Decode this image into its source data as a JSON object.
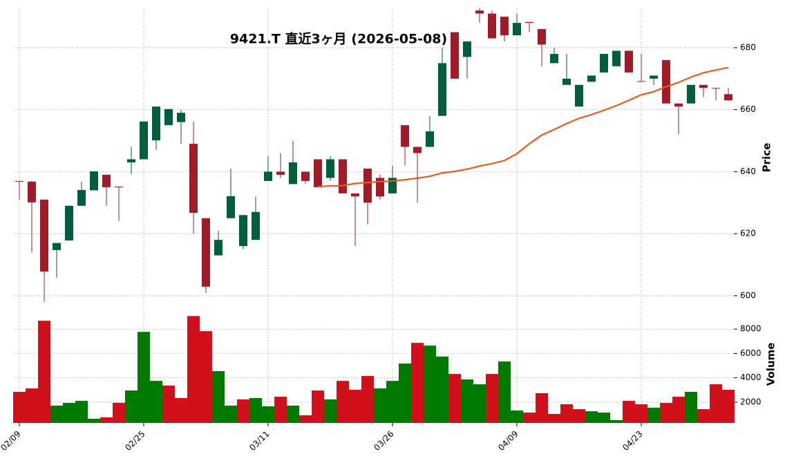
{
  "chart_data": {
    "type": "candlestick",
    "title": "9421.T  直近3ヶ月  (2026-05-08)",
    "categories": [
      "02/09",
      null,
      null,
      null,
      null,
      null,
      null,
      null,
      null,
      null,
      "02/25",
      null,
      null,
      null,
      null,
      null,
      null,
      null,
      null,
      null,
      "03/11",
      null,
      null,
      null,
      null,
      null,
      null,
      null,
      null,
      null,
      "03/26",
      null,
      null,
      null,
      null,
      null,
      null,
      null,
      null,
      null,
      "04/09",
      null,
      null,
      null,
      null,
      null,
      null,
      null,
      null,
      null,
      "04/23",
      null,
      null,
      null,
      null,
      null,
      null,
      null
    ],
    "open": [
      637,
      636.8,
      631,
      614.7,
      617.8,
      629,
      634,
      639,
      635.2,
      643,
      644,
      650.1,
      655,
      656,
      649,
      625,
      613,
      625,
      616,
      618,
      637,
      640,
      636,
      640,
      644,
      638,
      644,
      633,
      641,
      638,
      633,
      655,
      648,
      648,
      658,
      685,
      677,
      692,
      691,
      690,
      684,
      688.3,
      686,
      675,
      668,
      661,
      669,
      672,
      674,
      679,
      669.2,
      670,
      676,
      662,
      662,
      668,
      667,
      665
    ],
    "high": [
      637,
      637,
      631,
      617,
      629,
      636.8,
      640,
      639,
      635.2,
      648,
      656.2,
      661,
      660.2,
      660,
      656.2,
      625,
      621,
      641,
      626,
      632,
      645,
      646,
      650,
      640,
      644,
      645,
      644,
      633,
      641,
      639,
      642,
      655,
      648,
      658,
      680,
      685,
      682,
      692.7,
      692,
      690,
      691,
      688.3,
      686,
      680,
      678,
      668,
      671,
      678,
      679,
      679,
      678,
      671,
      676,
      662,
      668,
      668,
      667,
      667
    ],
    "low": [
      631,
      614,
      598,
      605.8,
      617.8,
      629,
      634,
      629,
      624,
      639.2,
      644,
      647,
      655,
      649,
      620,
      600.9,
      613,
      625,
      615,
      618,
      637,
      638,
      636,
      636,
      635,
      637,
      633,
      616,
      623,
      631,
      633,
      642,
      630,
      648,
      658,
      670,
      670,
      688,
      683,
      682,
      684,
      685,
      674,
      675,
      668,
      661,
      669,
      672,
      674,
      672,
      669,
      668,
      662,
      652,
      662,
      664,
      663,
      663
    ],
    "close": [
      636.8,
      630.1,
      607.8,
      617,
      629,
      634.1,
      640.1,
      635,
      635,
      644,
      656.2,
      661,
      660.2,
      659,
      626.7,
      602.9,
      618,
      632.1,
      626,
      627,
      640,
      639,
      643,
      637,
      635,
      644,
      633,
      632,
      630,
      632,
      638,
      648,
      646,
      653,
      675,
      670,
      682,
      691,
      683,
      684,
      688,
      688,
      681,
      678,
      670,
      668,
      671,
      678,
      679,
      672,
      669,
      671,
      662,
      661,
      668,
      667,
      666.8,
      663
    ],
    "up_color": "#005e3a",
    "down_color": "#a01c28",
    "ma": {
      "color": "#e8591a",
      "values": [
        null,
        null,
        null,
        null,
        null,
        null,
        null,
        null,
        null,
        null,
        null,
        null,
        null,
        null,
        null,
        null,
        null,
        null,
        null,
        null,
        null,
        null,
        null,
        null,
        635.2,
        635.4,
        635.5,
        636.2,
        636.5,
        636.8,
        637.0,
        637.4,
        637.9,
        638.5,
        639.6,
        640.1,
        640.8,
        641.8,
        642.6,
        643.6,
        645.8,
        649.0,
        651.8,
        653.6,
        655.5,
        657.2,
        658.4,
        659.8,
        661.3,
        663.0,
        664.8,
        665.8,
        667.4,
        668.8,
        670.5,
        671.9,
        672.8,
        673.6
      ]
    },
    "ylabel": "Price",
    "ylim": [
      597.3,
      692.7
    ],
    "yticks": [
      600,
      620,
      640,
      660,
      680
    ],
    "grid": true,
    "volume": {
      "label": "Volume",
      "values": [
        2850,
        3130,
        8680,
        1720,
        1940,
        2110,
        640,
        760,
        1950,
        2960,
        7770,
        3750,
        3360,
        2340,
        9070,
        7830,
        4550,
        1720,
        2230,
        2340,
        1660,
        2450,
        1720,
        930,
        2960,
        2230,
        3750,
        3020,
        4150,
        3130,
        3750,
        5170,
        6870,
        6640,
        5740,
        4320,
        3870,
        3470,
        4320,
        5340,
        1320,
        1150,
        2740,
        1040,
        1830,
        1430,
        1260,
        1150,
        530,
        2110,
        1830,
        1550,
        1940,
        2450,
        2850,
        1430,
        3470,
        3020
      ],
      "colors": [
        "#d0101a",
        "#d0101a",
        "#d0101a",
        "#007a00",
        "#007a00",
        "#007a00",
        "#007a00",
        "#d0101a",
        "#d0101a",
        "#007a00",
        "#007a00",
        "#007a00",
        "#d0101a",
        "#d0101a",
        "#d0101a",
        "#d0101a",
        "#007a00",
        "#007a00",
        "#d0101a",
        "#007a00",
        "#007a00",
        "#d0101a",
        "#007a00",
        "#d0101a",
        "#d0101a",
        "#007a00",
        "#d0101a",
        "#d0101a",
        "#d0101a",
        "#007a00",
        "#007a00",
        "#007a00",
        "#d0101a",
        "#007a00",
        "#007a00",
        "#d0101a",
        "#007a00",
        "#007a00",
        "#d0101a",
        "#007a00",
        "#007a00",
        "#d0101a",
        "#d0101a",
        "#d0101a",
        "#d0101a",
        "#d0101a",
        "#007a00",
        "#007a00",
        "#007a00",
        "#d0101a",
        "#d0101a",
        "#007a00",
        "#d0101a",
        "#d0101a",
        "#007a00",
        "#d0101a",
        "#d0101a",
        "#d0101a"
      ],
      "ylim": [
        300,
        10050
      ],
      "yticks": [
        2000,
        4000,
        6000,
        8000
      ]
    }
  }
}
